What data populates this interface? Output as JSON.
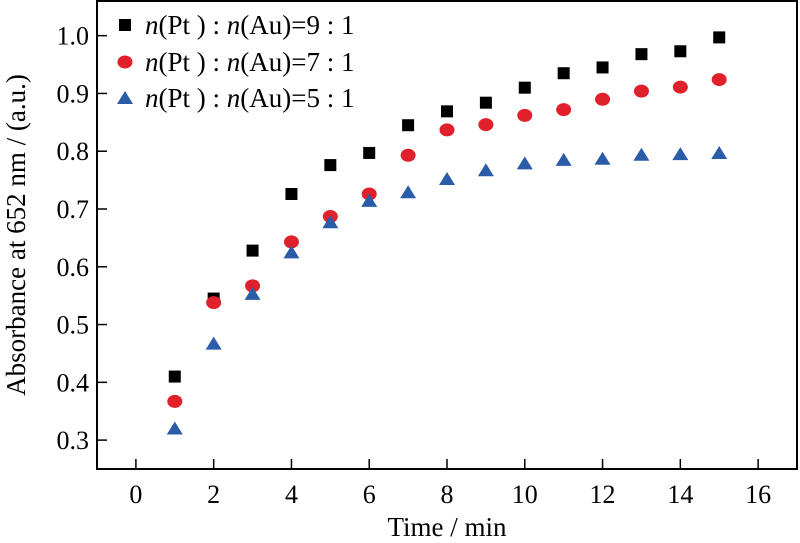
{
  "chart_data": {
    "type": "scatter",
    "xlabel": "Time / min",
    "ylabel": "Absorbance at 652 nm / (a.u.)",
    "xlim": [
      -1,
      17
    ],
    "ylim": [
      0.25,
      1.06
    ],
    "xticks": [
      "0",
      "2",
      "4",
      "6",
      "8",
      "10",
      "12",
      "14",
      "16"
    ],
    "yticks": [
      "0.3",
      "0.4",
      "0.5",
      "0.6",
      "0.7",
      "0.8",
      "0.9",
      "1.0"
    ],
    "grid": false,
    "legend_position": "top-left",
    "x": [
      1,
      2,
      3,
      4,
      5,
      6,
      7,
      8,
      9,
      10,
      11,
      12,
      13,
      14,
      15
    ],
    "series": [
      {
        "italic": "n",
        "name_parts": [
          "n",
          "(Pt ) : ",
          "n",
          "(Au)=9 : 1"
        ],
        "marker": "square",
        "color": "#000000",
        "values": [
          0.41,
          0.545,
          0.628,
          0.726,
          0.776,
          0.797,
          0.845,
          0.869,
          0.884,
          0.91,
          0.935,
          0.945,
          0.968,
          0.973,
          0.997
        ]
      },
      {
        "name_parts": [
          "n",
          "(Pt ) : ",
          "n",
          "(Au)=7 : 1"
        ],
        "marker": "circle",
        "color": "#e0202a",
        "values": [
          0.367,
          0.538,
          0.567,
          0.643,
          0.687,
          0.726,
          0.793,
          0.837,
          0.846,
          0.862,
          0.872,
          0.89,
          0.904,
          0.911,
          0.924
        ]
      },
      {
        "name_parts": [
          "n",
          "(Pt ) : ",
          "n",
          "(Au)=5 : 1"
        ],
        "marker": "triangle",
        "color": "#2a5ca8",
        "values": [
          0.32,
          0.467,
          0.553,
          0.625,
          0.677,
          0.714,
          0.729,
          0.752,
          0.767,
          0.779,
          0.785,
          0.787,
          0.794,
          0.795,
          0.797
        ]
      }
    ]
  }
}
